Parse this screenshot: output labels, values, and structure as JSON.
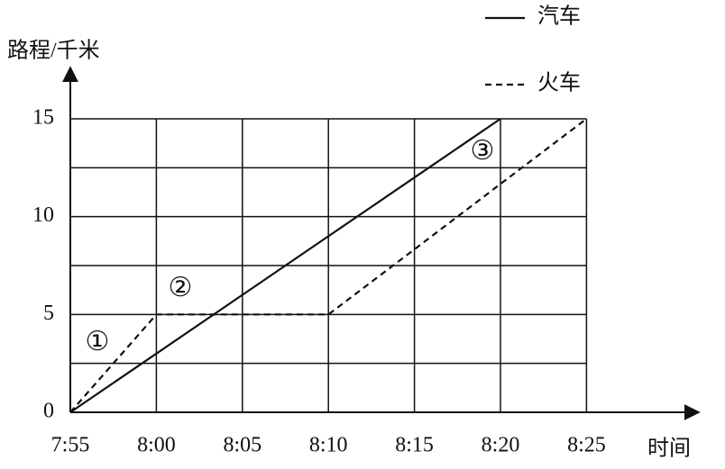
{
  "chart_data": {
    "type": "line",
    "y_label": "路程/千米",
    "x_label": "时间",
    "x": [
      "7:55",
      "8:00",
      "8:05",
      "8:10",
      "8:15",
      "8:20",
      "8:25"
    ],
    "series": [
      {
        "name": "汽车",
        "color": "#111111",
        "style": "solid",
        "values": [
          0,
          3,
          6,
          9,
          12,
          15,
          null
        ]
      },
      {
        "name": "火车",
        "color": "#111111",
        "style": "dashed",
        "values": [
          0,
          5,
          5,
          5,
          8.33,
          11.67,
          15
        ]
      }
    ],
    "ylim": [
      0,
      15
    ],
    "yticks": [
      0,
      5,
      10,
      15
    ],
    "minor_yticks": [
      2.5,
      7.5,
      12.5
    ],
    "grid": true,
    "legend": "top right",
    "annotations": [
      "①",
      "②",
      "③"
    ]
  }
}
